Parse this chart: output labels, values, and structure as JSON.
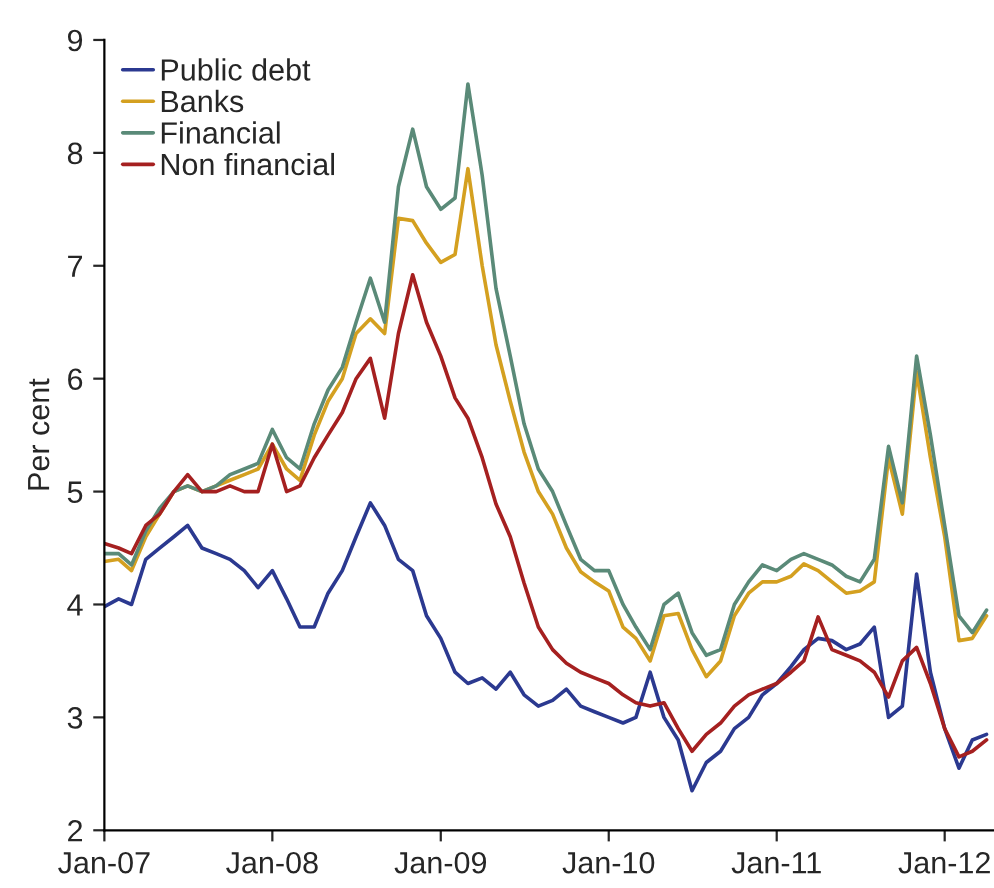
{
  "chart_data": {
    "type": "line",
    "ylabel": "Per cent",
    "x": [
      "2007-01",
      "2007-02",
      "2007-03",
      "2007-04",
      "2007-05",
      "2007-06",
      "2007-07",
      "2007-08",
      "2007-09",
      "2007-10",
      "2007-11",
      "2007-12",
      "2008-01",
      "2008-02",
      "2008-03",
      "2008-04",
      "2008-05",
      "2008-06",
      "2008-07",
      "2008-08",
      "2008-09",
      "2008-10",
      "2008-11",
      "2008-12",
      "2009-01",
      "2009-02",
      "2009-03",
      "2009-04",
      "2009-05",
      "2009-06",
      "2009-07",
      "2009-08",
      "2009-09",
      "2009-10",
      "2009-11",
      "2009-12",
      "2010-01",
      "2010-02",
      "2010-03",
      "2010-04",
      "2010-05",
      "2010-06",
      "2010-07",
      "2010-08",
      "2010-09",
      "2010-10",
      "2010-11",
      "2010-12",
      "2011-01",
      "2011-02",
      "2011-03",
      "2011-04",
      "2011-05",
      "2011-06",
      "2011-07",
      "2011-08",
      "2011-09",
      "2011-10",
      "2011-11",
      "2011-12",
      "2012-01",
      "2012-02",
      "2012-03",
      "2012-04"
    ],
    "series": [
      {
        "name": "Public debt",
        "color": "#2b3990",
        "values": [
          3.98,
          4.05,
          4.0,
          4.4,
          4.5,
          4.6,
          4.7,
          4.5,
          4.45,
          4.4,
          4.3,
          4.15,
          4.3,
          4.05,
          3.8,
          3.8,
          4.1,
          4.3,
          4.6,
          4.9,
          4.7,
          4.4,
          4.3,
          3.9,
          3.7,
          3.4,
          3.3,
          3.35,
          3.25,
          3.4,
          3.2,
          3.1,
          3.15,
          3.25,
          3.1,
          3.05,
          3.0,
          2.95,
          3.0,
          3.4,
          3.0,
          2.8,
          2.35,
          2.6,
          2.7,
          2.9,
          3.0,
          3.2,
          3.3,
          3.45,
          3.6,
          3.7,
          3.68,
          3.6,
          3.65,
          3.8,
          3.0,
          3.1,
          4.27,
          3.4,
          2.9,
          2.55,
          2.8,
          2.85
        ]
      },
      {
        "name": "Banks",
        "color": "#d4a020",
        "values": [
          4.38,
          4.4,
          4.3,
          4.6,
          4.8,
          5.0,
          5.05,
          5.0,
          5.05,
          5.1,
          5.15,
          5.2,
          5.42,
          5.2,
          5.1,
          5.5,
          5.8,
          6.0,
          6.4,
          6.53,
          6.4,
          7.42,
          7.4,
          7.2,
          7.03,
          7.1,
          7.86,
          7.0,
          6.3,
          5.8,
          5.35,
          5.0,
          4.8,
          4.5,
          4.29,
          4.2,
          4.12,
          3.8,
          3.7,
          3.5,
          3.9,
          3.92,
          3.6,
          3.36,
          3.5,
          3.9,
          4.1,
          4.2,
          4.2,
          4.25,
          4.36,
          4.3,
          4.2,
          4.1,
          4.12,
          4.2,
          5.3,
          4.8,
          6.06,
          5.3,
          4.6,
          3.68,
          3.7,
          3.9
        ]
      },
      {
        "name": "Financial",
        "color": "#5a8a78",
        "values": [
          4.45,
          4.45,
          4.35,
          4.65,
          4.85,
          5.0,
          5.05,
          5.0,
          5.05,
          5.15,
          5.2,
          5.25,
          5.55,
          5.3,
          5.2,
          5.6,
          5.9,
          6.1,
          6.5,
          6.89,
          6.5,
          7.7,
          8.21,
          7.7,
          7.5,
          7.6,
          8.61,
          7.8,
          6.8,
          6.2,
          5.6,
          5.2,
          5.0,
          4.7,
          4.4,
          4.3,
          4.3,
          4.0,
          3.8,
          3.6,
          4.0,
          4.1,
          3.75,
          3.55,
          3.6,
          4.0,
          4.2,
          4.35,
          4.3,
          4.4,
          4.45,
          4.4,
          4.35,
          4.25,
          4.2,
          4.4,
          5.4,
          4.9,
          6.2,
          5.5,
          4.7,
          3.9,
          3.75,
          3.95
        ]
      },
      {
        "name": "Non financial",
        "color": "#a52020",
        "values": [
          4.54,
          4.5,
          4.45,
          4.7,
          4.8,
          5.0,
          5.15,
          5.0,
          5.0,
          5.05,
          5.0,
          5.0,
          5.42,
          5.0,
          5.05,
          5.3,
          5.5,
          5.7,
          6.0,
          6.18,
          5.65,
          6.4,
          6.92,
          6.5,
          6.2,
          5.83,
          5.65,
          5.3,
          4.89,
          4.6,
          4.19,
          3.8,
          3.6,
          3.48,
          3.4,
          3.35,
          3.3,
          3.2,
          3.13,
          3.1,
          3.13,
          2.9,
          2.7,
          2.85,
          2.95,
          3.1,
          3.2,
          3.25,
          3.3,
          3.4,
          3.5,
          3.89,
          3.6,
          3.55,
          3.5,
          3.4,
          3.18,
          3.5,
          3.62,
          3.3,
          2.9,
          2.65,
          2.7,
          2.8
        ]
      }
    ],
    "xlim": [
      "2007-01-01",
      "2012-04-15"
    ],
    "xticks": [
      {
        "value": "2007-01",
        "label": "Jan-07"
      },
      {
        "value": "2008-01",
        "label": "Jan-08"
      },
      {
        "value": "2009-01",
        "label": "Jan-09"
      },
      {
        "value": "2010-01",
        "label": "Jan-10"
      },
      {
        "value": "2011-01",
        "label": "Jan-11"
      },
      {
        "value": "2012-01",
        "label": "Jan-12"
      }
    ],
    "ylim": [
      2,
      9
    ],
    "yticks": [
      2,
      3,
      4,
      5,
      6,
      7,
      8,
      9
    ],
    "grid": false,
    "legend": "top left",
    "marker": "none",
    "line_style": "solid"
  }
}
